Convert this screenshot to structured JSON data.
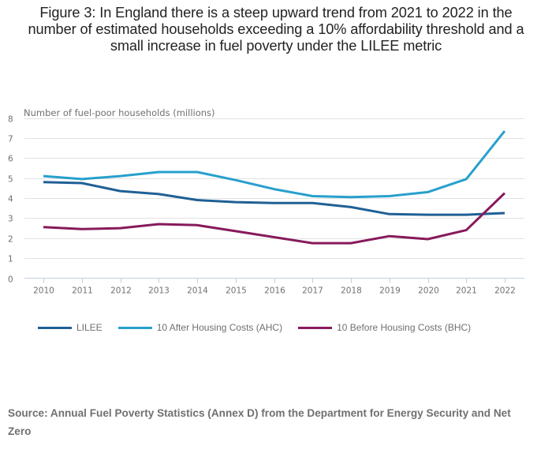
{
  "title": "Figure 3: In England there is a steep upward trend from 2021 to 2022 in the number of estimated households exceeding a 10% affordability threshold and a small increase in fuel poverty under the LILEE metric",
  "source": "Source: Annual Fuel Poverty Statistics (Annex D) from the Department for Energy Security and Net Zero",
  "chart_data": {
    "type": "line",
    "title": "Figure 3: In England there is a steep upward trend from 2021 to 2022 in the number of estimated households exceeding a 10% affordability threshold and a small increase in fuel poverty under the LILEE metric",
    "xlabel": "",
    "ylabel": "Number of fuel-poor households (millions)",
    "x": [
      "2010",
      "2011",
      "2012",
      "2013",
      "2014",
      "2015",
      "2016",
      "2017",
      "2018",
      "2019",
      "2020",
      "2021",
      "2022"
    ],
    "ylim": [
      0,
      8
    ],
    "yticks": [
      0,
      1,
      2,
      3,
      4,
      5,
      6,
      7,
      8
    ],
    "grid": true,
    "legend_position": "bottom",
    "series": [
      {
        "name": "LILEE",
        "color": "#206095",
        "values": [
          4.8,
          4.75,
          4.35,
          4.2,
          3.9,
          3.8,
          3.75,
          3.75,
          3.55,
          3.2,
          3.17,
          3.17,
          3.25
        ]
      },
      {
        "name": "10 After Housing Costs (AHC)",
        "color": "#27a0cc",
        "values": [
          5.1,
          4.95,
          5.1,
          5.3,
          5.3,
          4.9,
          4.45,
          4.1,
          4.05,
          4.1,
          4.3,
          4.95,
          7.35
        ]
      },
      {
        "name": "10 Before Housing Costs (BHC)",
        "color": "#871a5b",
        "values": [
          2.55,
          2.45,
          2.5,
          2.7,
          2.65,
          2.35,
          2.05,
          1.75,
          1.75,
          2.1,
          1.95,
          2.4,
          4.25
        ]
      }
    ]
  }
}
